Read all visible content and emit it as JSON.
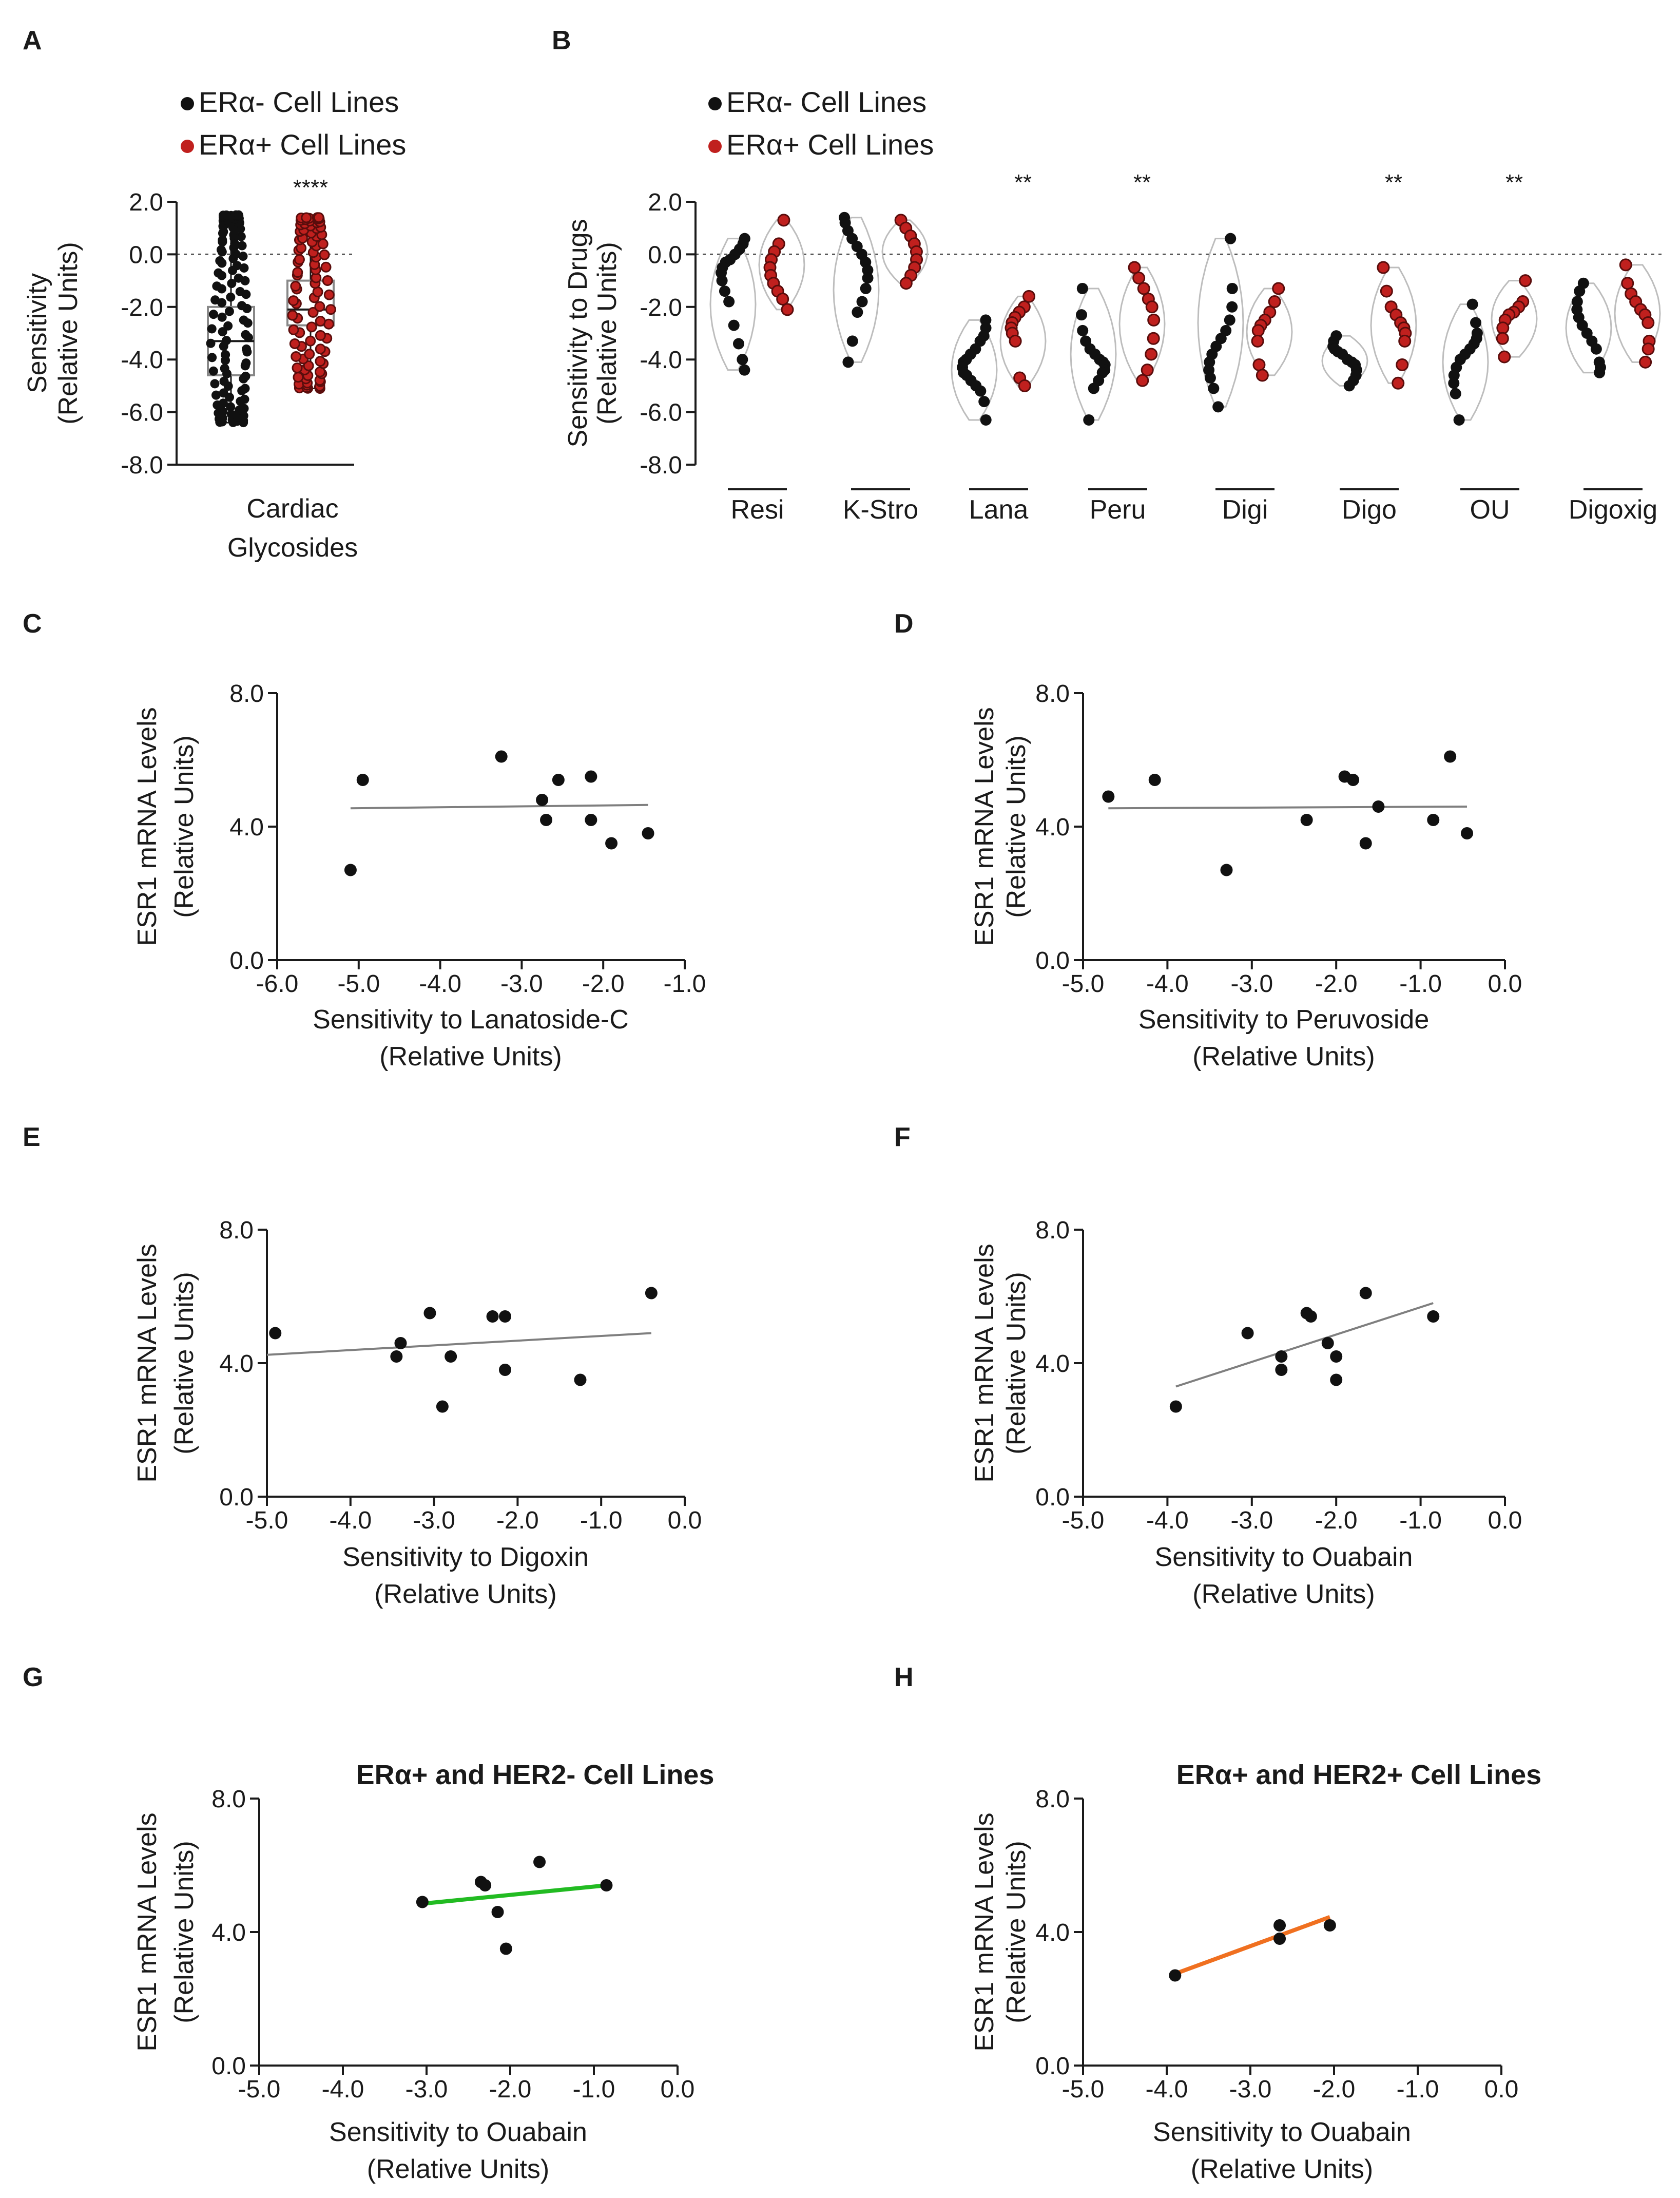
{
  "colors": {
    "neg": "#111111",
    "pos": "#c0201e",
    "axis": "#1a1a1a",
    "violin": "#bdbdbd",
    "fit": "#7f7f7f",
    "fit_her2neg": "#22bb22",
    "fit_her2pos": "#f07020"
  },
  "chart_data": [
    {
      "panel": "A",
      "type": "box-scatter",
      "legend": [
        "ERα- Cell Lines",
        "ERα+ Cell Lines"
      ],
      "ylabel_line1": "Sensitivity",
      "ylabel_line2": "(Relative  Units)",
      "y_ticks": [
        "2.0",
        "0.0",
        "-2.0",
        "-4.0",
        "-6.0",
        "-8.0"
      ],
      "ylim": [
        -8,
        2
      ],
      "reference_line": 0,
      "xlabel_line1": "Cardiac",
      "xlabel_line2": "Glycosides",
      "significance": "****",
      "groups": [
        {
          "name": "ERα- Cell Lines",
          "min": -6.4,
          "q1": -4.6,
          "median": -3.3,
          "q3": -2.0,
          "max": 1.5,
          "n": 110
        },
        {
          "name": "ERα+ Cell Lines",
          "min": -5.1,
          "q1": -2.7,
          "median": -2.1,
          "q3": -1.0,
          "max": 1.4,
          "n": 90
        }
      ]
    },
    {
      "panel": "B",
      "type": "violin-scatter",
      "legend": [
        "ERα- Cell Lines",
        "ERα+ Cell Lines"
      ],
      "ylabel_line1": "Sensitivity to Drugs",
      "ylabel_line2": "(Relative  Units)",
      "y_ticks": [
        "2.0",
        "0.0",
        "-2.0",
        "-4.0",
        "-6.0",
        "-8.0"
      ],
      "ylim": [
        -8,
        2
      ],
      "reference_line": 0,
      "categories": [
        "Resi",
        "K-Stro",
        "Lana",
        "Peru",
        "Digi",
        "Digo",
        "OU",
        "Digoxig"
      ],
      "significance": [
        "",
        "",
        "**",
        "**",
        "",
        "**",
        "**",
        ""
      ],
      "series": [
        {
          "name": "ERα- Cell Lines",
          "values": [
            [
              0.6,
              0.4,
              0.2,
              0.0,
              -0.2,
              -0.3,
              -0.5,
              -0.7,
              -1.0,
              -1.4,
              -1.8,
              -2.7,
              -3.4,
              -4.0,
              -4.4
            ],
            [
              1.4,
              1.2,
              0.9,
              0.6,
              0.3,
              0.0,
              -0.3,
              -0.6,
              -0.9,
              -1.3,
              -1.8,
              -2.2,
              -3.3,
              -4.1
            ],
            [
              -2.5,
              -2.8,
              -3.1,
              -3.3,
              -3.6,
              -3.8,
              -4.0,
              -4.1,
              -4.3,
              -4.5,
              -4.6,
              -4.8,
              -5.0,
              -5.2,
              -5.6,
              -6.3
            ],
            [
              -1.3,
              -2.3,
              -2.9,
              -3.3,
              -3.6,
              -3.8,
              -4.0,
              -4.1,
              -4.2,
              -4.4,
              -4.5,
              -4.8,
              -5.1,
              -6.3
            ],
            [
              0.6,
              -1.3,
              -2.0,
              -2.5,
              -2.9,
              -3.2,
              -3.5,
              -3.8,
              -4.1,
              -4.4,
              -4.7,
              -5.1,
              -5.8
            ],
            [
              -3.1,
              -3.3,
              -3.5,
              -3.6,
              -3.7,
              -3.8,
              -4.0,
              -4.1,
              -4.2,
              -4.4,
              -4.6,
              -4.8,
              -5.0
            ],
            [
              -1.9,
              -2.6,
              -3.0,
              -3.2,
              -3.4,
              -3.6,
              -3.8,
              -4.0,
              -4.3,
              -4.6,
              -4.9,
              -5.3,
              -6.3
            ],
            [
              -1.1,
              -1.4,
              -1.8,
              -2.1,
              -2.4,
              -2.7,
              -3.0,
              -3.3,
              -3.6,
              -4.1,
              -4.3,
              -4.5
            ]
          ]
        },
        {
          "name": "ERα+ Cell Lines",
          "values": [
            [
              1.3,
              0.4,
              0.1,
              -0.2,
              -0.5,
              -0.8,
              -1.1,
              -1.4,
              -1.7,
              -2.1
            ],
            [
              1.3,
              1.0,
              0.7,
              0.4,
              0.1,
              -0.2,
              -0.5,
              -0.8,
              -1.1
            ],
            [
              -1.6,
              -2.0,
              -2.2,
              -2.4,
              -2.6,
              -2.8,
              -3.0,
              -3.3,
              -4.7,
              -5.0
            ],
            [
              -0.5,
              -0.9,
              -1.3,
              -1.7,
              -2.0,
              -2.5,
              -3.2,
              -3.8,
              -4.4,
              -4.8
            ],
            [
              -1.3,
              -1.8,
              -2.2,
              -2.5,
              -2.7,
              -2.9,
              -3.3,
              -4.2,
              -4.6
            ],
            [
              -0.5,
              -1.4,
              -2.0,
              -2.3,
              -2.6,
              -2.8,
              -3.0,
              -3.3,
              -4.2,
              -4.9
            ],
            [
              -1.0,
              -1.8,
              -2.0,
              -2.2,
              -2.3,
              -2.5,
              -2.8,
              -3.2,
              -3.9
            ],
            [
              -0.4,
              -1.1,
              -1.5,
              -1.8,
              -2.1,
              -2.3,
              -2.6,
              -3.3,
              -3.6,
              -4.1
            ]
          ]
        }
      ]
    },
    {
      "panel": "C",
      "type": "scatter",
      "xlabel_line1": "Sensitivity to Lanatoside-C",
      "xlabel_line2": "(Relative  Units)",
      "ylabel_line1": "ESR1 mRNA Levels",
      "ylabel_line2": "(Relative  Units)",
      "xlim": [
        -6,
        -1
      ],
      "ylim": [
        0,
        8
      ],
      "x_ticks": [
        "-6.0",
        "-5.0",
        "-4.0",
        "-3.0",
        "-2.0",
        "-1.0"
      ],
      "y_ticks": [
        "8.0",
        "4.0",
        "0.0"
      ],
      "x": [
        -5.1,
        -4.95,
        -3.25,
        -2.75,
        -2.55,
        -2.7,
        -2.15,
        -2.15,
        -1.9,
        -1.45
      ],
      "y": [
        2.7,
        5.4,
        6.1,
        4.8,
        5.4,
        4.2,
        5.5,
        4.2,
        3.5,
        3.8
      ],
      "fit": {
        "x": [
          -5.1,
          -1.45
        ],
        "y": [
          4.55,
          4.65
        ]
      }
    },
    {
      "panel": "D",
      "type": "scatter",
      "xlabel_line1": "Sensitivity to Peruvoside",
      "xlabel_line2": "(Relative  Units)",
      "ylabel_line1": "ESR1 mRNA Levels",
      "ylabel_line2": "(Relative  Units)",
      "xlim": [
        -5,
        0
      ],
      "ylim": [
        0,
        8
      ],
      "x_ticks": [
        "-5.0",
        "-4.0",
        "-3.0",
        "-2.0",
        "-1.0",
        "0.0"
      ],
      "y_ticks": [
        "8.0",
        "4.0",
        "0.0"
      ],
      "x": [
        -4.7,
        -4.15,
        -3.3,
        -2.35,
        -1.9,
        -1.8,
        -1.65,
        -1.5,
        -0.85,
        -0.65,
        -0.45
      ],
      "y": [
        4.9,
        5.4,
        2.7,
        4.2,
        5.5,
        5.4,
        3.5,
        4.6,
        4.2,
        6.1,
        3.8
      ],
      "fit": {
        "x": [
          -4.7,
          -0.45
        ],
        "y": [
          4.55,
          4.6
        ]
      }
    },
    {
      "panel": "E",
      "type": "scatter",
      "xlabel_line1": "Sensitivity to Digoxin",
      "xlabel_line2": "(Relative  Units)",
      "ylabel_line1": "ESR1 mRNA Levels",
      "ylabel_line2": "(Relative  Units)",
      "xlim": [
        -5,
        0
      ],
      "ylim": [
        0,
        8
      ],
      "x_ticks": [
        "-5.0",
        "-4.0",
        "-3.0",
        "-2.0",
        "-1.0",
        "0.0"
      ],
      "y_ticks": [
        "8.0",
        "4.0",
        "0.0"
      ],
      "x": [
        -4.9,
        -3.45,
        -3.4,
        -3.05,
        -2.9,
        -2.8,
        -2.3,
        -2.15,
        -2.15,
        -1.25,
        -0.4
      ],
      "y": [
        4.9,
        4.2,
        4.6,
        5.5,
        2.7,
        4.2,
        5.4,
        5.4,
        3.8,
        3.5,
        6.1
      ],
      "fit": {
        "x": [
          -5.0,
          -0.4
        ],
        "y": [
          4.25,
          4.9
        ]
      }
    },
    {
      "panel": "F",
      "type": "scatter",
      "xlabel_line1": "Sensitivity to Ouabain",
      "xlabel_line2": "(Relative  Units)",
      "ylabel_line1": "ESR1 mRNA Levels",
      "ylabel_line2": "(Relative  Units)",
      "xlim": [
        -5,
        0
      ],
      "ylim": [
        0,
        8
      ],
      "x_ticks": [
        "-5.0",
        "-4.0",
        "-3.0",
        "-2.0",
        "-1.0",
        "0.0"
      ],
      "y_ticks": [
        "8.0",
        "4.0",
        "0.0"
      ],
      "x": [
        -3.9,
        -3.05,
        -2.65,
        -2.65,
        -2.35,
        -2.3,
        -2.1,
        -2.0,
        -2.0,
        -1.65,
        -0.85
      ],
      "y": [
        2.7,
        4.9,
        4.2,
        3.8,
        5.5,
        5.4,
        4.6,
        4.2,
        3.5,
        6.1,
        5.4
      ],
      "fit": {
        "x": [
          -3.9,
          -0.85
        ],
        "y": [
          3.3,
          5.8
        ]
      }
    },
    {
      "panel": "G",
      "type": "scatter",
      "title": "ERα+ and HER2- Cell Lines",
      "xlabel_line1": "Sensitivity to Ouabain",
      "xlabel_line2": "(Relative  Units)",
      "ylabel_line1": "ESR1 mRNA Levels",
      "ylabel_line2": "(Relative  Units)",
      "xlim": [
        -5,
        0
      ],
      "ylim": [
        0,
        8
      ],
      "x_ticks": [
        "-5.0",
        "-4.0",
        "-3.0",
        "-2.0",
        "-1.0",
        "0.0"
      ],
      "y_ticks": [
        "8.0",
        "4.0",
        "0.0"
      ],
      "x": [
        -3.05,
        -2.35,
        -2.3,
        -2.15,
        -2.05,
        -1.65,
        -0.85
      ],
      "y": [
        4.9,
        5.5,
        5.4,
        4.6,
        3.5,
        6.1,
        5.4
      ],
      "fit": {
        "x": [
          -3.05,
          -0.85
        ],
        "y": [
          4.85,
          5.4
        ]
      }
    },
    {
      "panel": "H",
      "type": "scatter",
      "title": "ERα+ and HER2+ Cell Lines",
      "xlabel_line1": "Sensitivity to Ouabain",
      "xlabel_line2": "(Relative  Units)",
      "ylabel_line1": "ESR1 mRNA Levels",
      "ylabel_line2": "(Relative  Units)",
      "xlim": [
        -5,
        0
      ],
      "ylim": [
        0,
        8
      ],
      "x_ticks": [
        "-5.0",
        "-4.0",
        "-3.0",
        "-2.0",
        "-1.0",
        "0.0"
      ],
      "y_ticks": [
        "8.0",
        "4.0",
        "0.0"
      ],
      "x": [
        -3.9,
        -2.65,
        -2.65,
        -2.05
      ],
      "y": [
        2.7,
        4.2,
        3.8,
        4.2
      ],
      "fit": {
        "x": [
          -3.9,
          -2.05
        ],
        "y": [
          2.75,
          4.45
        ]
      }
    }
  ]
}
